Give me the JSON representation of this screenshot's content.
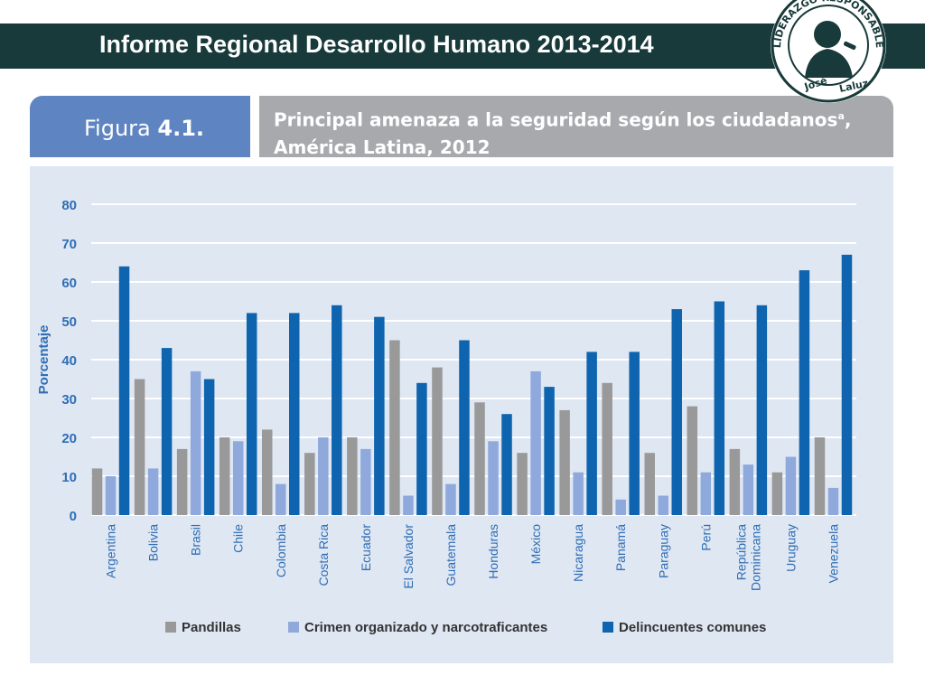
{
  "slide": {
    "title": "Informe Regional Desarrollo Humano 2013-2014"
  },
  "figure": {
    "label": "Figura 4.1.",
    "title_line1": "Principal amenaza a la seguridad según los ciudadanos",
    "title_sup": "a",
    "title_line2": "América Latina, 2012"
  },
  "logo": {
    "ring_text": "LIDERAZGO RESPONSABLE",
    "name_left": "José",
    "name_right": "Laluz"
  },
  "colors": {
    "title_bar": "#183a3a",
    "figure_label_bg": "#5f84c2",
    "figure_title_bg": "#a7a9ac",
    "chart_bg": "#dfe7f3",
    "series": [
      "#999999",
      "#8fa9dc",
      "#0e64ae"
    ],
    "axis_text": "#2f6eb5"
  },
  "chart_data": {
    "type": "bar",
    "ylabel": "Porcentaje",
    "ylim": [
      0,
      80
    ],
    "yticks": [
      0,
      10,
      20,
      30,
      40,
      50,
      60,
      70,
      80
    ],
    "grid": true,
    "legend_position": "bottom",
    "categories": [
      "Argentina",
      "Bolivia",
      "Brasil",
      "Chile",
      "Colombia",
      "Costa Rica",
      "Ecuador",
      "El Salvador",
      "Guatemala",
      "Honduras",
      "México",
      "Nicaragua",
      "Panamá",
      "Paraguay",
      "Perú",
      "República Dominicana",
      "Uruguay",
      "Venezuela"
    ],
    "series": [
      {
        "name": "Pandillas",
        "values": [
          12,
          35,
          17,
          20,
          22,
          16,
          20,
          45,
          38,
          29,
          16,
          27,
          34,
          16,
          28,
          17,
          11,
          20
        ]
      },
      {
        "name": "Crimen organizado y narcotraficantes",
        "values": [
          10,
          12,
          37,
          19,
          8,
          20,
          17,
          5,
          8,
          19,
          37,
          11,
          4,
          5,
          11,
          13,
          15,
          7
        ]
      },
      {
        "name": "Delincuentes comunes",
        "values": [
          64,
          43,
          35,
          52,
          52,
          54,
          51,
          34,
          45,
          26,
          33,
          42,
          42,
          53,
          55,
          54,
          63,
          67
        ]
      }
    ]
  }
}
